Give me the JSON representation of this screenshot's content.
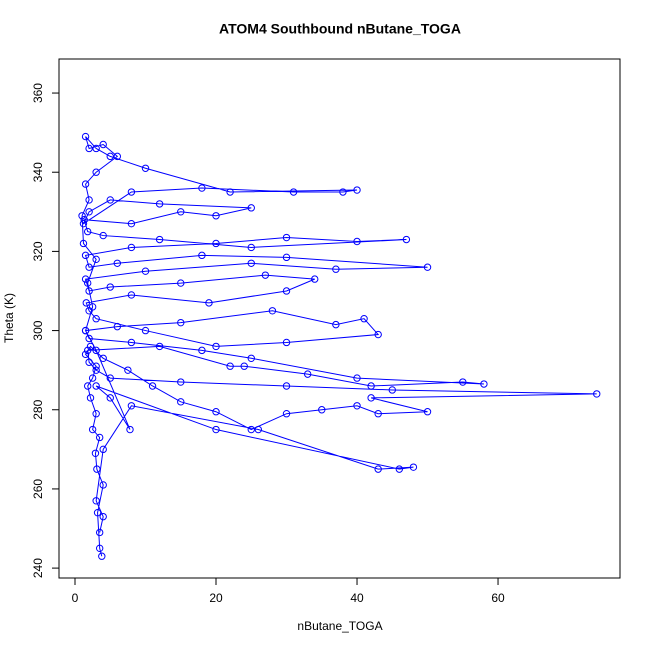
{
  "chart_data": {
    "type": "scatter",
    "title": "ATOM4 Southbound nButane_TOGA",
    "x_label": "nButane_TOGA",
    "y_label": "Theta (K)",
    "color": "#0000ff",
    "connect": true,
    "xlim": [
      -2.27,
      77.3
    ],
    "ylim": [
      237.5,
      368.6
    ],
    "xticks": [
      0,
      20,
      40,
      60
    ],
    "yticks": [
      240,
      260,
      280,
      300,
      320,
      340,
      360
    ],
    "x": [
      3.8,
      3.5,
      3.2,
      4,
      3.1,
      2.9,
      3.5,
      2.5,
      3,
      2.2,
      1.8,
      2.5,
      3,
      1.5,
      2.2,
      4,
      7.5,
      11,
      15,
      20,
      25,
      30,
      35,
      40,
      43,
      50,
      42,
      74,
      45,
      30,
      15,
      5,
      3,
      2,
      1.8,
      12,
      22,
      24,
      33,
      42,
      55,
      58,
      40,
      25,
      18,
      8,
      2,
      1.5,
      6,
      15,
      28,
      37,
      41,
      43,
      30,
      20,
      10,
      3,
      2,
      1.6,
      8,
      19,
      30,
      34,
      27,
      15,
      5,
      2,
      1.5,
      10,
      25,
      37,
      50,
      30,
      18,
      6,
      2,
      1.5,
      8,
      20,
      30,
      40,
      47,
      25,
      12,
      4,
      1.8,
      1.3,
      8,
      15,
      20,
      25,
      12,
      5,
      2,
      1.2,
      8,
      18,
      31,
      38,
      40,
      22,
      10,
      5,
      3,
      1.5,
      2,
      4,
      6,
      3,
      1.5,
      2,
      1,
      1.2,
      3,
      1.8,
      2.5,
      1.5,
      3,
      7.8,
      5,
      3,
      20,
      46,
      48,
      43,
      26,
      8,
      4,
      3,
      4,
      3.5
    ],
    "y": [
      243,
      245,
      254,
      261,
      265,
      269,
      273,
      275,
      279,
      283,
      286,
      288,
      291,
      294,
      296,
      293,
      290,
      286,
      282,
      279.5,
      275,
      279,
      280,
      281,
      279,
      279.5,
      283,
      284,
      285,
      286,
      287,
      288,
      290,
      292,
      295,
      296,
      291,
      291,
      289,
      286,
      287,
      286.5,
      288,
      293,
      295,
      297,
      298,
      300,
      301,
      302,
      305,
      301.5,
      303,
      299,
      297,
      296,
      300,
      303,
      305,
      307,
      309,
      307,
      310,
      313,
      314,
      312,
      311,
      310,
      313,
      315,
      317,
      315.5,
      316,
      318.5,
      319,
      317,
      316,
      319,
      321,
      322,
      323.5,
      322.5,
      323,
      321,
      323,
      324,
      325,
      328,
      327,
      330,
      329,
      331,
      332,
      333,
      330,
      327,
      335,
      336,
      335,
      335,
      335.5,
      335,
      341,
      344,
      346,
      349,
      346,
      347,
      344,
      340,
      337,
      333,
      329,
      322,
      318,
      312,
      306,
      300,
      295,
      275,
      283,
      286,
      275,
      265,
      265.5,
      265,
      275,
      281,
      270,
      257,
      253,
      249
    ]
  }
}
